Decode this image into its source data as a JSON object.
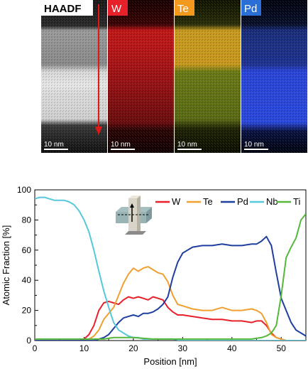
{
  "maps": [
    {
      "label": "HAADF",
      "label_bg": "#ffffff",
      "label_fg": "#000000",
      "scalebar": "10 nm"
    },
    {
      "label": "W",
      "label_bg": "#e8202a",
      "label_fg": "#ffffff",
      "scalebar": "10 nm"
    },
    {
      "label": "Te",
      "label_bg": "#f39a1e",
      "label_fg": "#ffffff",
      "scalebar": "10 nm"
    },
    {
      "label": "Pd",
      "label_bg": "#2a6fd8",
      "label_fg": "#ffffff",
      "scalebar": "10 nm"
    }
  ],
  "chart_data": {
    "type": "line",
    "xlabel": "Position [nm]",
    "ylabel": "Atomic Fraction [%]",
    "xlim": [
      0,
      55
    ],
    "ylim": [
      0,
      100
    ],
    "xticks": [
      "0",
      "10",
      "20",
      "30",
      "40",
      "50"
    ],
    "yticks": [
      "0",
      "20",
      "40",
      "60",
      "80",
      "100"
    ],
    "legend_position": "top-right",
    "series": [
      {
        "name": "W",
        "color": "#e8202a",
        "x": [
          0,
          9,
          10,
          11,
          12,
          13,
          14,
          15,
          16,
          17,
          18,
          19,
          20,
          21,
          22,
          23,
          24,
          25,
          26,
          27,
          28,
          29,
          30,
          32,
          34,
          36,
          38,
          40,
          42,
          44,
          45,
          46,
          47,
          48,
          49,
          50,
          51,
          52,
          53,
          54,
          55
        ],
        "y": [
          0,
          0,
          1,
          4,
          10,
          20,
          25,
          26,
          25,
          24,
          27,
          29,
          28,
          29,
          28,
          27,
          29,
          28,
          27,
          22,
          19,
          17,
          17,
          16,
          15,
          14,
          14,
          13,
          13,
          12,
          13,
          13,
          10,
          5,
          2,
          1,
          0,
          0,
          0,
          0,
          0
        ]
      },
      {
        "name": "Te",
        "color": "#f0a030",
        "x": [
          0,
          10,
          11,
          12,
          13,
          14,
          15,
          16,
          17,
          18,
          19,
          20,
          21,
          22,
          23,
          24,
          25,
          26,
          27,
          28,
          29,
          30,
          32,
          34,
          36,
          38,
          40,
          42,
          44,
          45,
          46,
          47,
          48,
          49,
          50,
          51,
          52,
          53,
          54,
          55
        ],
        "y": [
          0,
          0,
          1,
          3,
          7,
          14,
          18,
          22,
          30,
          38,
          44,
          48,
          46,
          48,
          49,
          47,
          45,
          44,
          39,
          30,
          24,
          23,
          21,
          20,
          20,
          22,
          20,
          20,
          21,
          20,
          18,
          12,
          4,
          2,
          1,
          0,
          0,
          0,
          0,
          0
        ]
      },
      {
        "name": "Pd",
        "color": "#1f3f9e",
        "x": [
          0,
          12,
          13,
          14,
          15,
          16,
          17,
          18,
          19,
          20,
          21,
          22,
          23,
          24,
          25,
          26,
          27,
          28,
          29,
          30,
          31,
          32,
          34,
          36,
          38,
          40,
          42,
          44,
          45,
          46,
          47,
          48,
          49,
          50,
          51,
          52,
          53,
          54,
          55
        ],
        "y": [
          0,
          0,
          1,
          2,
          4,
          8,
          12,
          15,
          16,
          17,
          16,
          18,
          18,
          19,
          21,
          24,
          29,
          42,
          52,
          58,
          60,
          62,
          63,
          63,
          64,
          63,
          63,
          64,
          64,
          66,
          69,
          63,
          45,
          28,
          20,
          12,
          7,
          5,
          3
        ]
      },
      {
        "name": "Nb",
        "color": "#55c8dc",
        "x": [
          0,
          1,
          2,
          3,
          4,
          5,
          6,
          7,
          8,
          9,
          10,
          11,
          12,
          13,
          14,
          15,
          16,
          17,
          18,
          19,
          20,
          21,
          22,
          24,
          26,
          28,
          30,
          35,
          40,
          45,
          50,
          55
        ],
        "y": [
          94,
          95,
          95,
          94,
          93,
          93,
          93,
          92,
          90,
          86,
          80,
          72,
          60,
          46,
          33,
          22,
          12,
          7,
          5,
          3,
          2,
          2,
          1,
          1,
          1,
          1,
          0,
          0,
          0,
          0,
          0,
          0
        ]
      },
      {
        "name": "Ti",
        "color": "#55b83a",
        "x": [
          0,
          10,
          14,
          16,
          18,
          20,
          24,
          28,
          32,
          36,
          40,
          44,
          46,
          47,
          48,
          49,
          50,
          51,
          52,
          53,
          54,
          55
        ],
        "y": [
          1,
          1,
          1,
          2,
          2,
          2,
          1,
          1,
          1,
          1,
          1,
          1,
          2,
          3,
          5,
          10,
          30,
          55,
          62,
          68,
          80,
          84
        ]
      }
    ]
  }
}
